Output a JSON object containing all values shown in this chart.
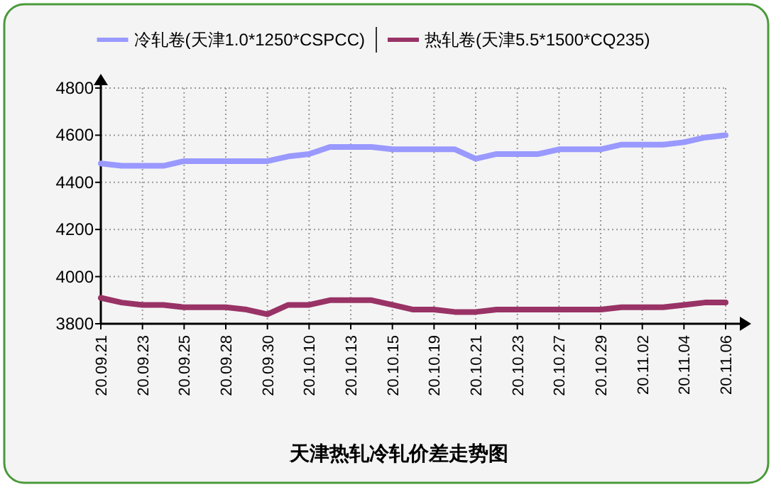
{
  "chart_data": {
    "type": "line",
    "title": "天津热轧冷轧价差走势图",
    "categories": [
      "20.09.21",
      null,
      "20.09.23",
      null,
      "20.09.25",
      null,
      "20.09.28",
      null,
      "20.09.30",
      null,
      "20.10.10",
      null,
      "20.10.13",
      null,
      "20.10.15",
      null,
      "20.10.19",
      null,
      "20.10.21",
      null,
      "20.10.23",
      null,
      "20.10.27",
      null,
      "20.10.29",
      null,
      "20.11.02",
      null,
      "20.11.04",
      null,
      "20.11.06"
    ],
    "series": [
      {
        "name": "冷轧卷(天津1.0*1250*CSPCC)",
        "color": "#9999ff",
        "values": [
          4480,
          4470,
          4470,
          4470,
          4490,
          4490,
          4490,
          4490,
          4490,
          4510,
          4520,
          4550,
          4550,
          4550,
          4540,
          4540,
          4540,
          4540,
          4500,
          4520,
          4520,
          4520,
          4540,
          4540,
          4540,
          4560,
          4560,
          4560,
          4570,
          4590,
          4600
        ]
      },
      {
        "name": "热轧卷(天津5.5*1500*CQ235)",
        "color": "#993366",
        "values": [
          3910,
          3890,
          3880,
          3880,
          3870,
          3870,
          3870,
          3860,
          3840,
          3880,
          3880,
          3900,
          3900,
          3900,
          3880,
          3860,
          3860,
          3850,
          3850,
          3860,
          3860,
          3860,
          3860,
          3860,
          3860,
          3870,
          3870,
          3870,
          3880,
          3890,
          3890
        ]
      }
    ],
    "ylim": [
      3800,
      4800
    ],
    "yticks": [
      3800,
      4000,
      4200,
      4400,
      4600,
      4800
    ],
    "grid": true,
    "legend": "top",
    "line_style": "solid",
    "marker": "none"
  }
}
